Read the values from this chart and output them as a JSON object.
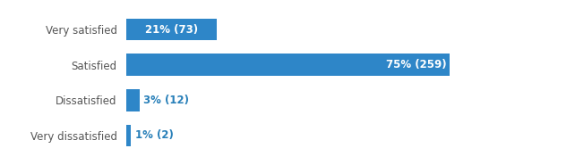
{
  "categories": [
    "Very satisfied",
    "Satisfied",
    "Dissatisfied",
    "Very dissatisfied"
  ],
  "values": [
    21,
    75,
    3,
    1
  ],
  "labels": [
    "21% (73)",
    "75% (259)",
    "3% (12)",
    "1% (2)"
  ],
  "bar_color": "#2e86c8",
  "background_color": "#ffffff",
  "text_color_inside": "#ffffff",
  "text_color_outside": "#2980b9",
  "label_color": "#555555",
  "max_value": 100,
  "bar_height": 0.62,
  "figsize": [
    6.42,
    1.85
  ],
  "dpi": 100,
  "label_fontsize": 8.5,
  "value_fontsize": 8.5,
  "inside_threshold": 10
}
